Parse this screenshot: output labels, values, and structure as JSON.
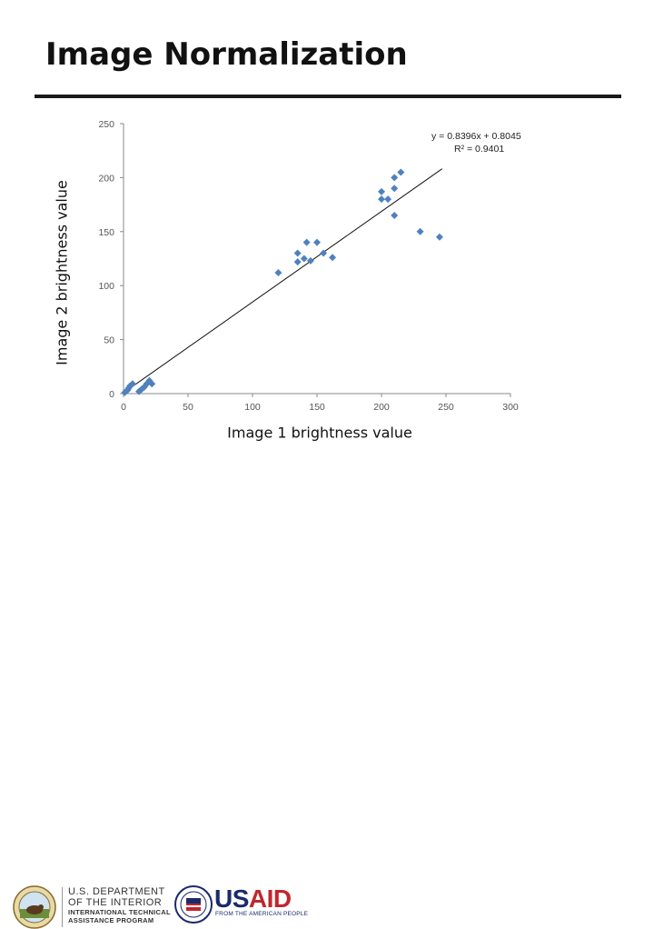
{
  "slide": {
    "title": "Image Normalization"
  },
  "chart_data": {
    "type": "scatter",
    "xlabel": "Image 1 brightness value",
    "ylabel": "Image 2 brightness value",
    "xlim": [
      0,
      300
    ],
    "ylim": [
      0,
      250
    ],
    "xticks": [
      0,
      50,
      100,
      150,
      200,
      250,
      300
    ],
    "yticks": [
      0,
      50,
      100,
      150,
      200,
      250
    ],
    "grid": false,
    "trendline": {
      "slope": 0.8396,
      "intercept": 0.8045,
      "equation_label": "y = 0.8396x + 0.8045",
      "r2_label": "R² = 0.9401"
    },
    "marker_color": "#4f81bd",
    "points": [
      [
        1,
        1
      ],
      [
        3,
        3
      ],
      [
        4,
        5
      ],
      [
        5,
        7
      ],
      [
        7,
        9
      ],
      [
        12,
        2
      ],
      [
        14,
        4
      ],
      [
        16,
        6
      ],
      [
        18,
        9
      ],
      [
        20,
        12
      ],
      [
        22,
        9
      ],
      [
        120,
        112
      ],
      [
        135,
        122
      ],
      [
        135,
        130
      ],
      [
        140,
        125
      ],
      [
        142,
        140
      ],
      [
        145,
        123
      ],
      [
        150,
        140
      ],
      [
        155,
        130
      ],
      [
        162,
        126
      ],
      [
        200,
        180
      ],
      [
        200,
        187
      ],
      [
        205,
        180
      ],
      [
        210,
        165
      ],
      [
        210,
        190
      ],
      [
        210,
        200
      ],
      [
        215,
        205
      ],
      [
        230,
        150
      ],
      [
        245,
        145
      ]
    ]
  },
  "footer": {
    "doi_line1": "U.S. DEPARTMENT",
    "doi_line2": "OF THE INTERIOR",
    "doi_line3": "INTERNATIONAL TECHNICAL",
    "doi_line4": "ASSISTANCE PROGRAM",
    "usaid_us": "US",
    "usaid_aid": "AID",
    "usaid_tagline": "FROM THE AMERICAN PEOPLE",
    "doi_seal_icon": "doi-seal-icon",
    "usaid_seal_icon": "usaid-seal-icon"
  }
}
